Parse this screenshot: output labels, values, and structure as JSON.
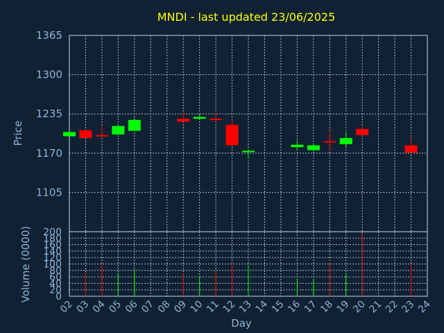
{
  "chart_data": {
    "type": "candlestick",
    "title": "MNDI - last updated 23/06/2025",
    "price_axis": {
      "label": "Price",
      "ylim": [
        1040,
        1365
      ],
      "ticks": [
        1105,
        1170,
        1235,
        1300,
        1365
      ]
    },
    "volume_axis": {
      "label": "Volume (0000)",
      "ylim": [
        0,
        200
      ],
      "ticks": [
        0,
        20,
        40,
        60,
        80,
        100,
        120,
        140,
        160,
        180,
        200
      ]
    },
    "x_axis": {
      "label": "Day",
      "ticks": [
        "02",
        "03",
        "04",
        "05",
        "06",
        "07",
        "08",
        "09",
        "10",
        "11",
        "12",
        "13",
        "14",
        "15",
        "16",
        "17",
        "18",
        "19",
        "20",
        "21",
        "22",
        "23",
        "24"
      ]
    },
    "grid": true,
    "colors": {
      "up": "#00ff00",
      "down": "#ff0000",
      "title": "#ffff00",
      "axis_text": "#8fb4d8",
      "background": "#0f2133"
    },
    "candles": [
      {
        "day": "02",
        "open": 1198,
        "close": 1205,
        "high": 1205,
        "low": 1198,
        "volume": 0
      },
      {
        "day": "03",
        "open": 1208,
        "close": 1195,
        "high": 1208,
        "low": 1195,
        "volume": 72
      },
      {
        "day": "04",
        "open": 1200,
        "close": 1199,
        "high": 1215,
        "low": 1199,
        "volume": 100
      },
      {
        "day": "05",
        "open": 1201,
        "close": 1215,
        "high": 1215,
        "low": 1201,
        "volume": 72
      },
      {
        "day": "06",
        "open": 1207,
        "close": 1225,
        "high": 1228,
        "low": 1207,
        "volume": 82
      },
      {
        "day": "09",
        "open": 1227,
        "close": 1222,
        "high": 1238,
        "low": 1222,
        "volume": 72
      },
      {
        "day": "10",
        "open": 1227,
        "close": 1230,
        "high": 1235,
        "low": 1225,
        "volume": 60
      },
      {
        "day": "11",
        "open": 1227,
        "close": 1225,
        "high": 1237,
        "low": 1222,
        "volume": 78
      },
      {
        "day": "12",
        "open": 1217,
        "close": 1183,
        "high": 1227,
        "low": 1183,
        "volume": 102
      },
      {
        "day": "13",
        "open": 1172,
        "close": 1174,
        "high": 1177,
        "low": 1160,
        "volume": 97
      },
      {
        "day": "16",
        "open": 1180,
        "close": 1184,
        "high": 1191,
        "low": 1175,
        "volume": 55
      },
      {
        "day": "17",
        "open": 1175,
        "close": 1183,
        "high": 1186,
        "low": 1173,
        "volume": 52
      },
      {
        "day": "18",
        "open": 1190,
        "close": 1189,
        "high": 1207,
        "low": 1175,
        "volume": 105
      },
      {
        "day": "19",
        "open": 1185,
        "close": 1195,
        "high": 1205,
        "low": 1180,
        "volume": 72
      },
      {
        "day": "20",
        "open": 1210,
        "close": 1200,
        "high": 1215,
        "low": 1200,
        "volume": 195
      },
      {
        "day": "23",
        "open": 1183,
        "close": 1171,
        "high": 1197,
        "low": 1171,
        "volume": 100
      }
    ]
  }
}
